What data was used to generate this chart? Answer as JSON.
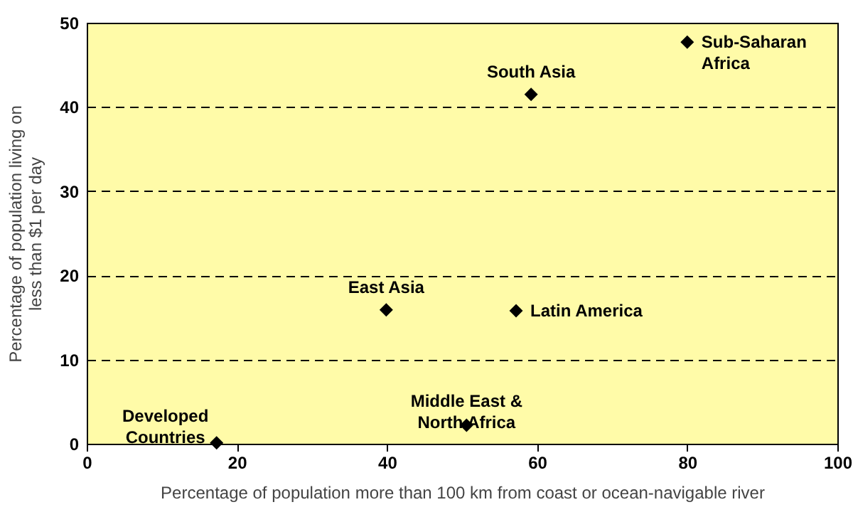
{
  "chart_data": {
    "type": "scatter",
    "xlabel": "Percentage of population more than 100 km from coast or ocean-navigable river",
    "ylabel": "Percentage of population living on\nless than $1 per day",
    "x": [
      17.3,
      39.9,
      57.2,
      50.6,
      59.2,
      80.0
    ],
    "series": [
      {
        "color": "#000000",
        "values": [
          0.1,
          15.9,
          15.8,
          2.2,
          41.5,
          47.7
        ]
      }
    ],
    "marker": "diamond",
    "xlim": [
      0,
      100
    ],
    "xticks": [
      0,
      20,
      40,
      60,
      80,
      100
    ],
    "ylim": [
      0,
      50
    ],
    "yticks": [
      0,
      10,
      20,
      30,
      40,
      50
    ],
    "grid": "y",
    "line_style": "dashed",
    "annotations": [
      {
        "text": "Developed\nCountries",
        "x": 17.3,
        "y": 0.1
      },
      {
        "text": "East Asia",
        "x": 39.9,
        "y": 15.9
      },
      {
        "text": "Latin America",
        "x": 57.2,
        "y": 15.8
      },
      {
        "text": "Middle East &\nNorth Africa",
        "x": 50.6,
        "y": 2.2
      },
      {
        "text": "South Asia",
        "x": 59.2,
        "y": 41.5
      },
      {
        "text": "Sub-Saharan\nAfrica",
        "x": 80.0,
        "y": 47.7
      }
    ]
  }
}
